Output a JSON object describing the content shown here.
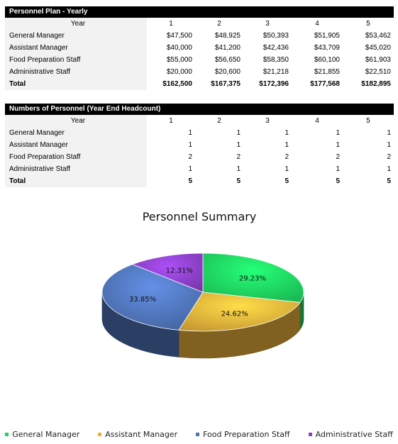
{
  "plan": {
    "title": "Personnel Plan - Yearly",
    "year_label": "Year",
    "years": [
      "1",
      "2",
      "3",
      "4",
      "5"
    ],
    "rows": [
      {
        "label": "General Manager",
        "values": [
          "$47,500",
          "$48,925",
          "$50,393",
          "$51,905",
          "$53,462"
        ]
      },
      {
        "label": "Assistant Manager",
        "values": [
          "$40,000",
          "$41,200",
          "$42,436",
          "$43,709",
          "$45,020"
        ]
      },
      {
        "label": "Food Preparation Staff",
        "values": [
          "$55,000",
          "$56,650",
          "$58,350",
          "$60,100",
          "$61,903"
        ]
      },
      {
        "label": "Administrative Staff",
        "values": [
          "$20,000",
          "$20,600",
          "$21,218",
          "$21,855",
          "$22,510"
        ]
      }
    ],
    "total": {
      "label": "Total",
      "values": [
        "$162,500",
        "$167,375",
        "$172,396",
        "$177,568",
        "$182,895"
      ]
    }
  },
  "headcount": {
    "title": "Numbers of Personnel (Year End Headcount)",
    "year_label": "Year",
    "years": [
      "1",
      "2",
      "3",
      "4",
      "5"
    ],
    "rows": [
      {
        "label": "General Manager",
        "values": [
          "1",
          "1",
          "1",
          "1",
          "1"
        ]
      },
      {
        "label": "Assistant Manager",
        "values": [
          "1",
          "1",
          "1",
          "1",
          "1"
        ]
      },
      {
        "label": "Food Preparation Staff",
        "values": [
          "2",
          "2",
          "2",
          "2",
          "2"
        ]
      },
      {
        "label": "Administrative Staff",
        "values": [
          "1",
          "1",
          "1",
          "1",
          "1"
        ]
      }
    ],
    "total": {
      "label": "Total",
      "values": [
        "5",
        "5",
        "5",
        "5",
        "5"
      ]
    }
  },
  "chart_data": {
    "type": "pie",
    "title": "Personnel Summary",
    "categories": [
      "General Manager",
      "Assistant Manager",
      "Food Preparation Staff",
      "Administrative Staff"
    ],
    "values": [
      29.23,
      24.62,
      33.85,
      12.31
    ],
    "labels": [
      "29.23%",
      "24.62%",
      "33.85%",
      "12.31%"
    ],
    "colors": [
      "#1ed760",
      "#e8b13a",
      "#4f73b8",
      "#8a3fc6"
    ],
    "legend": "bottom"
  }
}
